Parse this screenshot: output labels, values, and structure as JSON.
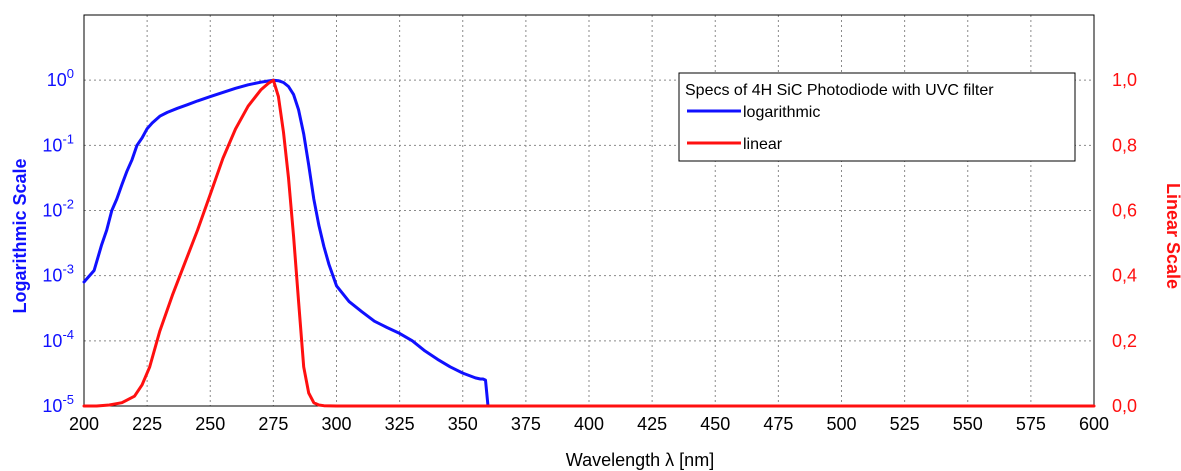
{
  "chart_data": {
    "type": "line",
    "title": "",
    "xlabel": "Wavelength λ [nm]",
    "ylabel_left": "Logarithmic Scale",
    "ylabel_right": "Linear Scale",
    "xlim": [
      200,
      600
    ],
    "x_ticks": [
      "200",
      "225",
      "250",
      "275",
      "300",
      "325",
      "350",
      "375",
      "400",
      "425",
      "450",
      "475",
      "500",
      "525",
      "550",
      "575",
      "600"
    ],
    "y_left_scale": "log",
    "y_left_lim": [
      1e-05,
      10
    ],
    "y_left_ticks": [
      {
        "base": "10",
        "exp": "0",
        "value": 1
      },
      {
        "base": "10",
        "exp": "-1",
        "value": 0.1
      },
      {
        "base": "10",
        "exp": "-2",
        "value": 0.01
      },
      {
        "base": "10",
        "exp": "-3",
        "value": 0.001
      },
      {
        "base": "10",
        "exp": "-4",
        "value": 0.0001
      },
      {
        "base": "10",
        "exp": "-5",
        "value": 1e-05
      }
    ],
    "y_right_lim": [
      0,
      1.2
    ],
    "y_right_ticks": [
      {
        "label": "1,0",
        "value": 1.0
      },
      {
        "label": "0,8",
        "value": 0.8
      },
      {
        "label": "0,6",
        "value": 0.6
      },
      {
        "label": "0,4",
        "value": 0.4
      },
      {
        "label": "0,2",
        "value": 0.2
      },
      {
        "label": "0,0",
        "value": 0.0
      }
    ],
    "grid": true,
    "grid_style": "dotted",
    "legend": {
      "title": "Specs of 4H SiC Photodiode with UVC filter",
      "placement": "top-right"
    },
    "colors": {
      "logarithmic": "#1010ff",
      "linear": "#ff1010",
      "left_axis_text": "#1010ff",
      "right_axis_text": "#ff1010",
      "grid": "#8a8a8a"
    },
    "series": [
      {
        "name": "logarithmic",
        "axis": "left",
        "x": [
          200,
          204,
          207,
          209,
          211,
          213,
          215,
          217,
          219,
          221,
          223,
          225,
          227,
          230,
          233,
          237,
          241,
          245,
          250,
          255,
          260,
          265,
          270,
          273,
          275,
          277,
          279,
          281,
          283,
          285,
          287,
          289,
          291,
          293,
          295,
          297,
          300,
          305,
          310,
          315,
          320,
          325,
          330,
          335,
          340,
          345,
          350,
          355,
          357,
          358,
          359,
          360,
          361
        ],
        "y": [
          0.0008,
          0.0012,
          0.003,
          0.005,
          0.01,
          0.015,
          0.025,
          0.04,
          0.06,
          0.1,
          0.13,
          0.18,
          0.22,
          0.28,
          0.32,
          0.37,
          0.42,
          0.48,
          0.56,
          0.65,
          0.75,
          0.85,
          0.93,
          0.97,
          1.0,
          0.98,
          0.92,
          0.8,
          0.6,
          0.35,
          0.15,
          0.05,
          0.015,
          0.006,
          0.0028,
          0.0015,
          0.0007,
          0.0004,
          0.00028,
          0.0002,
          0.00016,
          0.00013,
          0.0001,
          7e-05,
          5.2e-05,
          4e-05,
          3.2e-05,
          2.7e-05,
          2.6e-05,
          2.6e-05,
          2.5e-05,
          1e-05,
          1e-05
        ]
      },
      {
        "name": "linear",
        "axis": "right",
        "x": [
          200,
          205,
          210,
          215,
          220,
          223,
          226,
          230,
          235,
          240,
          245,
          250,
          255,
          260,
          265,
          270,
          273,
          275,
          277,
          279,
          281,
          283,
          285,
          287,
          289,
          291,
          293,
          295,
          300,
          350,
          400,
          450,
          500,
          550,
          600
        ],
        "y": [
          0,
          0,
          0.003,
          0.01,
          0.03,
          0.065,
          0.12,
          0.23,
          0.34,
          0.44,
          0.54,
          0.65,
          0.76,
          0.85,
          0.92,
          0.97,
          0.99,
          1.0,
          0.95,
          0.84,
          0.7,
          0.52,
          0.32,
          0.12,
          0.04,
          0.01,
          0.003,
          0.001,
          0,
          0,
          0,
          0,
          0,
          0,
          0
        ]
      }
    ]
  }
}
